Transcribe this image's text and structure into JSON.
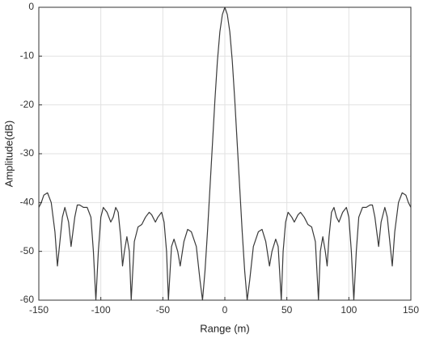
{
  "chart_data": {
    "type": "line",
    "xlabel": "Range (m)",
    "ylabel": "Amplitude(dB)",
    "x": [
      -150,
      -148,
      -146,
      -143,
      -140,
      -137,
      -135,
      -133,
      -131,
      -129,
      -126,
      -124,
      -121,
      -119,
      -117,
      -114,
      -111,
      -108,
      -106,
      -104,
      -102,
      -100,
      -98,
      -95,
      -92,
      -90,
      -88,
      -86,
      -84,
      -82.5,
      -81,
      -79,
      -77,
      -75.5,
      -73,
      -70,
      -67,
      -64,
      -61,
      -59,
      -56,
      -54,
      -51,
      -49,
      -47,
      -45.5,
      -43,
      -41,
      -38,
      -36,
      -33,
      -30,
      -27,
      -23,
      -20,
      -18,
      -16,
      -14,
      -12,
      -10,
      -8,
      -6,
      -4,
      -2,
      0,
      2,
      4,
      6,
      8,
      10,
      12,
      14,
      16,
      18,
      20,
      23,
      27,
      30,
      33,
      36,
      38,
      41,
      43,
      45.5,
      47,
      49,
      51,
      54,
      56,
      59,
      61,
      64,
      67,
      70,
      73,
      75.5,
      77,
      79,
      81,
      82.5,
      84,
      86,
      88,
      90,
      92,
      95,
      98,
      100,
      102,
      104,
      106,
      108,
      111,
      114,
      117,
      119,
      121,
      124,
      126,
      129,
      131,
      133,
      135,
      137,
      140,
      143,
      146,
      148,
      150
    ],
    "series": [
      {
        "name": "Amplitude",
        "color": "#3a3a3a",
        "values": [
          -41,
          -40,
          -38.5,
          -38,
          -40,
          -46,
          -53,
          -48,
          -43,
          -41,
          -44,
          -49,
          -43,
          -40.5,
          -40.5,
          -41,
          -41,
          -43,
          -50,
          -60,
          -50,
          -43,
          -41,
          -42,
          -44,
          -43,
          -41,
          -42,
          -47,
          -53,
          -50,
          -47,
          -50,
          -60,
          -48,
          -45,
          -44.5,
          -43,
          -42,
          -42.5,
          -44,
          -43,
          -42,
          -44,
          -50,
          -60,
          -49,
          -47.5,
          -50,
          -53,
          -48,
          -45.5,
          -46,
          -49,
          -56,
          -60,
          -54,
          -46,
          -37,
          -28,
          -19,
          -11,
          -5,
          -1.5,
          0,
          -1.5,
          -5,
          -11,
          -19,
          -28,
          -37,
          -46,
          -54,
          -60,
          -56,
          -49,
          -46,
          -45.5,
          -48,
          -53,
          -50,
          -47.5,
          -49,
          -60,
          -50,
          -44,
          -42,
          -43,
          -44,
          -42.5,
          -42,
          -43,
          -44.5,
          -45,
          -48,
          -60,
          -50,
          -47,
          -50,
          -53,
          -47,
          -42,
          -41,
          -43,
          -44,
          -42,
          -41,
          -43,
          -50,
          -60,
          -50,
          -43,
          -41,
          -41,
          -40.5,
          -40.5,
          -43,
          -49,
          -44,
          -41,
          -43,
          -48,
          -53,
          -46,
          -40,
          -38,
          -38.5,
          -40,
          -41
        ]
      }
    ],
    "xlim": [
      -150,
      150
    ],
    "xticks": [
      -150,
      -100,
      -50,
      0,
      50,
      100,
      150
    ],
    "ylim": [
      -60,
      0
    ],
    "yticks": [
      -60,
      -50,
      -40,
      -30,
      -20,
      -10,
      0
    ],
    "grid": true
  }
}
